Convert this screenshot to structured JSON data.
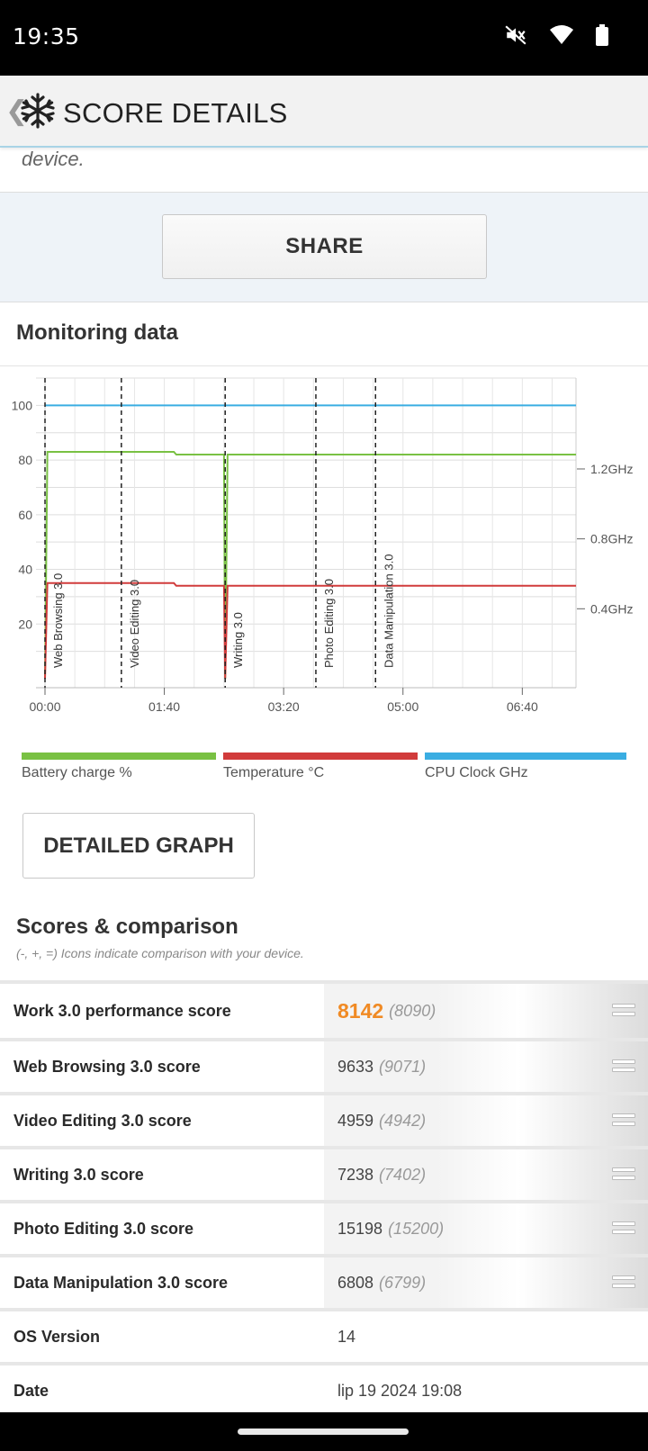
{
  "status_bar": {
    "time": "19:35",
    "icons": [
      "mute-icon",
      "wifi-icon",
      "battery-icon"
    ]
  },
  "app_bar": {
    "back_glyph": "❮",
    "title": "SCORE DETAILS"
  },
  "description": {
    "text": "device."
  },
  "share": {
    "label": "SHARE"
  },
  "monitoring": {
    "title": "Monitoring data",
    "detailed_graph_label": "DETAILED GRAPH"
  },
  "chart_data": {
    "type": "line",
    "x_unit": "mm:ss",
    "xlim": [
      0,
      445
    ],
    "x_tick_labels": [
      "00:00",
      "01:40",
      "03:20",
      "05:00",
      "06:40"
    ],
    "x_ticks": [
      0,
      100,
      200,
      300,
      400
    ],
    "y_left_ticks": [
      20,
      40,
      60,
      80,
      100
    ],
    "y_left_lim": [
      0,
      110
    ],
    "y_right_ticks": [
      {
        "label": "0.4GHz",
        "value": 0.4
      },
      {
        "label": "0.8GHz",
        "value": 0.8
      },
      {
        "label": "1.2GHz",
        "value": 1.2
      }
    ],
    "y_right_lim": [
      0,
      1.72
    ],
    "grid": true,
    "events": [
      {
        "label": "Web Browsing 3.0",
        "x": 0
      },
      {
        "label": "Video Editing 3.0",
        "x": 64
      },
      {
        "label": "Writing 3.0",
        "x": 151
      },
      {
        "label": "Photo Editing 3.0",
        "x": 227
      },
      {
        "label": "Data Manipulation 3.0",
        "x": 277
      }
    ],
    "series": [
      {
        "name": "Battery charge %",
        "color": "#79c143",
        "x": [
          0,
          2,
          108,
          110,
          150,
          151,
          153,
          445
        ],
        "y": [
          0,
          83,
          83,
          82,
          82,
          0,
          82,
          82
        ]
      },
      {
        "name": "Temperature °C",
        "color": "#d13b3b",
        "x": [
          0,
          2,
          108,
          110,
          150,
          151,
          153,
          445
        ],
        "y": [
          0,
          35,
          35,
          34,
          34,
          0,
          34,
          34
        ]
      },
      {
        "name": "CPU Clock GHz",
        "color": "#3aade2",
        "x": [
          0,
          445
        ],
        "y": [
          100,
          100
        ]
      }
    ]
  },
  "scores": {
    "title": "Scores & comparison",
    "subtitle": "(-, +, =) Icons indicate comparison with your device.",
    "rows": [
      {
        "label": "Work 3.0 performance score",
        "value": "8142",
        "ref": "(8090)",
        "icon": "equal-icon"
      },
      {
        "label": "Web Browsing 3.0 score",
        "value": "9633",
        "ref": "(9071)",
        "icon": "equal-icon"
      },
      {
        "label": "Video Editing 3.0 score",
        "value": "4959",
        "ref": "(4942)",
        "icon": "equal-icon"
      },
      {
        "label": "Writing 3.0 score",
        "value": "7238",
        "ref": "(7402)",
        "icon": "equal-icon"
      },
      {
        "label": "Photo Editing 3.0 score",
        "value": "15198",
        "ref": "(15200)",
        "icon": "equal-icon"
      },
      {
        "label": "Data Manipulation 3.0 score",
        "value": "6808",
        "ref": "(6799)",
        "icon": "equal-icon"
      }
    ],
    "info": [
      {
        "label": "OS Version",
        "value": "14"
      },
      {
        "label": "Date",
        "value": "lip 19 2024 19:08"
      }
    ]
  }
}
